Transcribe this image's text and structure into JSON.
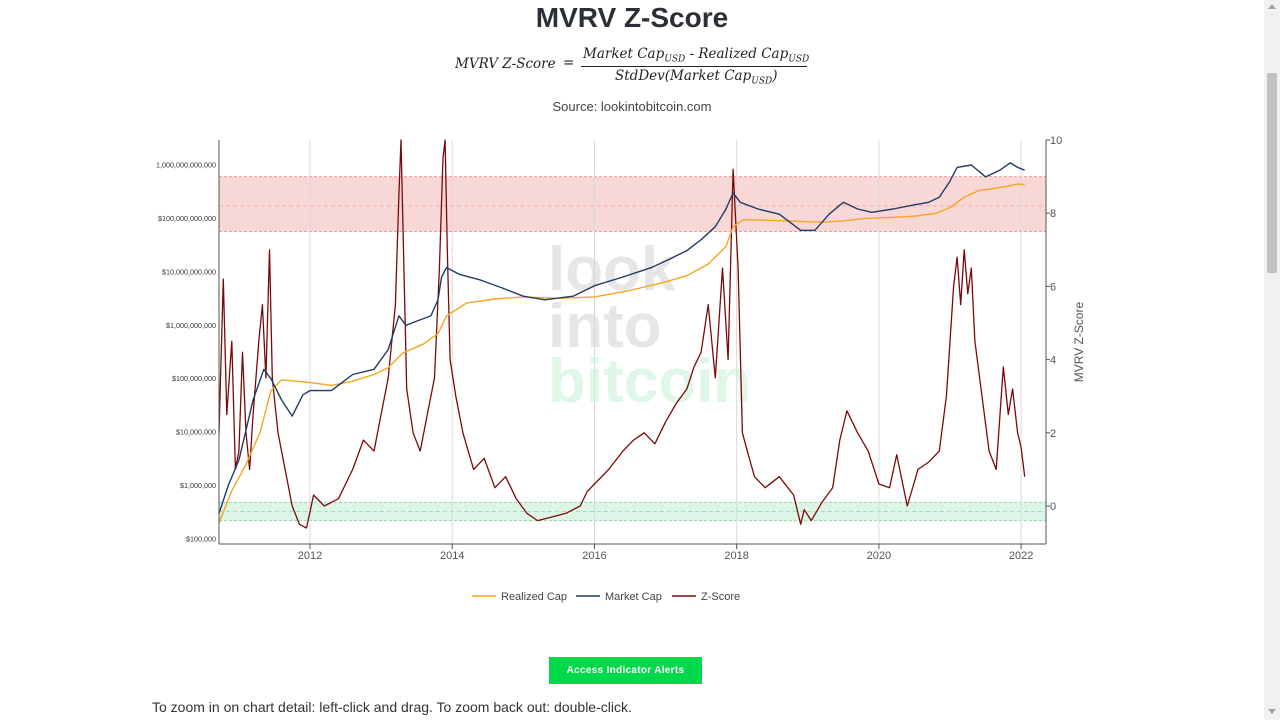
{
  "page": {
    "title": "MVRV Z-Score",
    "formula": {
      "lhs": "MVRV Z-Score",
      "eq": "=",
      "numerator": {
        "a": "Market Cap",
        "sub_a": "USD",
        "op": " - ",
        "b": "Realized Cap",
        "sub_b": "USD"
      },
      "denominator": {
        "a": "StdDev(Market Cap",
        "sub": "USD",
        "close": ")"
      }
    },
    "source": "Source: lookintobitcoin.com",
    "button_label": "Access Indicator Alerts",
    "zoom_hint": "To zoom in on chart detail: left-click and drag. To zoom back out: double-click."
  },
  "chart_data": {
    "type": "line",
    "watermark": [
      "look",
      "into",
      "bitcoin"
    ],
    "x_ticks": [
      "2012",
      "2014",
      "2016",
      "2018",
      "2020",
      "2022"
    ],
    "xlim": [
      2010.72,
      2022.35
    ],
    "y_left": {
      "scale": "log",
      "range": [
        100000,
        2000000000000
      ],
      "tick_labels": [
        "$100,000",
        "$1,000,000",
        "$10,000,000",
        "$100,000,000",
        "$1,000,000,000",
        "$10,000,000,000",
        "$100,000,000,000",
        "1,000,000,000,000"
      ]
    },
    "y_right": {
      "label": "MVRV Z-Score",
      "range": [
        -1,
        10
      ],
      "ticks": [
        "0",
        "2",
        "4",
        "6",
        "8",
        "10"
      ]
    },
    "bands": [
      {
        "axis": "right",
        "from": 7.5,
        "to": 9.0,
        "mid": 8.2,
        "color": "#f8d7d7"
      },
      {
        "axis": "right",
        "from": -0.4,
        "to": 0.1,
        "mid": -0.15,
        "color": "#dcf5e6"
      }
    ],
    "legend": {
      "placement": "bottom-center"
    },
    "series": [
      {
        "name": "Realized Cap",
        "color": "#f5a623",
        "axis": "left",
        "x": [
          2010.72,
          2010.9,
          2011.1,
          2011.3,
          2011.45,
          2011.6,
          2011.8,
          2012.0,
          2012.3,
          2012.6,
          2012.9,
          2013.1,
          2013.3,
          2013.6,
          2013.8,
          2013.92,
          2014.2,
          2014.6,
          2015.0,
          2015.5,
          2016.0,
          2016.5,
          2017.0,
          2017.3,
          2017.6,
          2017.85,
          2017.95,
          2018.1,
          2018.5,
          2018.9,
          2019.2,
          2019.5,
          2019.8,
          2020.2,
          2020.5,
          2020.8,
          2021.0,
          2021.2,
          2021.4,
          2021.6,
          2021.8,
          2021.95,
          2022.05
        ],
        "y": [
          200000,
          800000,
          2500000,
          10000000,
          60000000,
          95000000,
          90000000,
          85000000,
          75000000,
          90000000,
          120000000,
          160000000,
          300000000,
          450000000,
          700000000,
          1500000000,
          2600000000,
          3100000000,
          3400000000,
          3200000000,
          3400000000,
          4500000000,
          6500000000,
          8500000000,
          14000000000,
          30000000000,
          70000000000,
          95000000000,
          92000000000,
          88000000000,
          85000000000,
          90000000000,
          100000000000,
          105000000000,
          110000000000,
          125000000000,
          160000000000,
          250000000000,
          330000000000,
          360000000000,
          400000000000,
          440000000000,
          430000000000
        ]
      },
      {
        "name": "Market Cap",
        "color": "#1f3d63",
        "axis": "left",
        "x": [
          2010.72,
          2010.85,
          2011.0,
          2011.2,
          2011.35,
          2011.45,
          2011.6,
          2011.75,
          2011.9,
          2012.0,
          2012.3,
          2012.6,
          2012.9,
          2013.1,
          2013.25,
          2013.35,
          2013.5,
          2013.7,
          2013.8,
          2013.85,
          2013.92,
          2014.1,
          2014.4,
          2014.7,
          2015.0,
          2015.3,
          2015.7,
          2016.0,
          2016.4,
          2016.8,
          2017.0,
          2017.3,
          2017.5,
          2017.7,
          2017.85,
          2017.95,
          2018.05,
          2018.3,
          2018.6,
          2018.9,
          2019.1,
          2019.3,
          2019.5,
          2019.7,
          2019.9,
          2020.2,
          2020.5,
          2020.7,
          2020.85,
          2021.0,
          2021.1,
          2021.3,
          2021.5,
          2021.7,
          2021.85,
          2021.95,
          2022.05
        ],
        "y": [
          300000,
          1000000,
          3000000,
          40000000,
          150000000,
          100000000,
          40000000,
          20000000,
          50000000,
          60000000,
          60000000,
          120000000,
          150000000,
          350000000,
          1500000000,
          1000000000,
          1200000000,
          1500000000,
          3000000000,
          8000000000,
          12000000000,
          9000000000,
          7000000000,
          5000000000,
          3500000000,
          3000000000,
          3500000000,
          5500000000,
          8000000000,
          12000000000,
          16000000000,
          25000000000,
          40000000000,
          70000000000,
          150000000000,
          300000000000,
          200000000000,
          150000000000,
          120000000000,
          60000000000,
          60000000000,
          120000000000,
          200000000000,
          150000000000,
          130000000000,
          150000000000,
          180000000000,
          200000000000,
          250000000000,
          500000000000,
          900000000000,
          1000000000000,
          600000000000,
          800000000000,
          1100000000000,
          900000000000,
          800000000000
        ]
      },
      {
        "name": "Z-Score",
        "color": "#7a0a0a",
        "axis": "right",
        "x": [
          2010.72,
          2010.78,
          2010.83,
          2010.9,
          2010.95,
          2011.0,
          2011.05,
          2011.1,
          2011.15,
          2011.2,
          2011.28,
          2011.33,
          2011.38,
          2011.43,
          2011.47,
          2011.55,
          2011.65,
          2011.75,
          2011.85,
          2011.95,
          2012.05,
          2012.2,
          2012.4,
          2012.6,
          2012.75,
          2012.9,
          2013.0,
          2013.1,
          2013.2,
          2013.25,
          2013.28,
          2013.32,
          2013.36,
          2013.45,
          2013.55,
          2013.65,
          2013.75,
          2013.82,
          2013.87,
          2013.9,
          2013.93,
          2013.97,
          2014.05,
          2014.15,
          2014.3,
          2014.45,
          2014.6,
          2014.75,
          2014.9,
          2015.05,
          2015.2,
          2015.4,
          2015.6,
          2015.8,
          2015.9,
          2016.0,
          2016.2,
          2016.4,
          2016.55,
          2016.7,
          2016.85,
          2017.0,
          2017.15,
          2017.3,
          2017.4,
          2017.5,
          2017.6,
          2017.7,
          2017.8,
          2017.88,
          2017.95,
          2018.02,
          2018.08,
          2018.15,
          2018.25,
          2018.4,
          2018.6,
          2018.8,
          2018.9,
          2018.95,
          2019.05,
          2019.2,
          2019.35,
          2019.45,
          2019.55,
          2019.7,
          2019.85,
          2020.0,
          2020.15,
          2020.25,
          2020.4,
          2020.55,
          2020.7,
          2020.85,
          2020.95,
          2021.05,
          2021.1,
          2021.15,
          2021.2,
          2021.25,
          2021.3,
          2021.35,
          2021.45,
          2021.55,
          2021.65,
          2021.75,
          2021.82,
          2021.88,
          2021.95,
          2022.0,
          2022.05
        ],
        "y": [
          2.0,
          6.2,
          2.5,
          4.5,
          1.0,
          1.5,
          4.2,
          2.0,
          1.0,
          2.5,
          4.5,
          5.5,
          3.5,
          7.0,
          3.5,
          2.0,
          1.0,
          0.0,
          -0.5,
          -0.6,
          0.3,
          0.0,
          0.2,
          1.0,
          1.8,
          1.5,
          2.5,
          3.5,
          5.5,
          8.5,
          10.0,
          6.5,
          3.2,
          2.0,
          1.5,
          2.5,
          3.5,
          6.5,
          9.5,
          10.0,
          7.0,
          4.0,
          3.0,
          2.0,
          1.0,
          1.3,
          0.5,
          0.8,
          0.2,
          -0.2,
          -0.4,
          -0.3,
          -0.2,
          0.0,
          0.4,
          0.6,
          1.0,
          1.5,
          1.8,
          2.0,
          1.7,
          2.3,
          2.8,
          3.2,
          3.8,
          4.2,
          5.5,
          3.5,
          6.5,
          4.0,
          9.2,
          6.5,
          2.0,
          1.5,
          0.8,
          0.5,
          0.8,
          0.3,
          -0.5,
          -0.1,
          -0.4,
          0.1,
          0.5,
          1.8,
          2.6,
          2.0,
          1.5,
          0.6,
          0.5,
          1.4,
          0.0,
          1.0,
          1.2,
          1.5,
          3.0,
          6.0,
          6.8,
          5.5,
          7.0,
          5.8,
          6.5,
          4.5,
          3.0,
          1.5,
          1.0,
          3.8,
          2.5,
          3.2,
          2.0,
          1.6,
          0.8
        ]
      }
    ]
  }
}
